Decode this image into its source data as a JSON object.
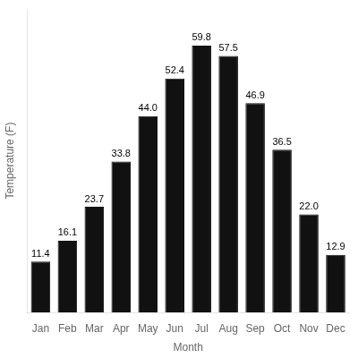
{
  "chart_data": {
    "type": "bar",
    "categories": [
      "Jan",
      "Feb",
      "Mar",
      "Apr",
      "May",
      "Jun",
      "Jul",
      "Aug",
      "Sep",
      "Oct",
      "Nov",
      "Dec"
    ],
    "values": [
      11.4,
      16.1,
      23.7,
      33.8,
      44.0,
      52.4,
      59.8,
      57.5,
      46.9,
      36.5,
      22.0,
      12.9
    ],
    "value_labels": [
      "11.4",
      "16.1",
      "23.7",
      "33.8",
      "44.0",
      "52.4",
      "59.8",
      "57.5",
      "46.9",
      "36.5",
      "22.0",
      "12.9"
    ],
    "color": "#111111",
    "xlabel": "Month",
    "ylabel": "Temperature (F)",
    "ylim": [
      0,
      68
    ],
    "grid": false,
    "data_labels": true,
    "tick_labels": "x"
  }
}
